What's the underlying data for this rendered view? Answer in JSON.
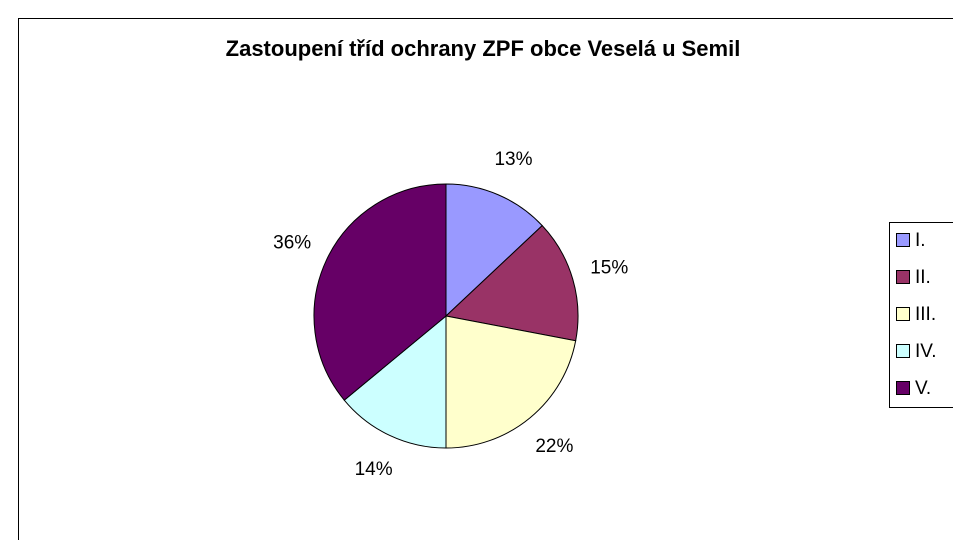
{
  "chart_data": {
    "type": "pie",
    "title": "Zastoupení tříd ochrany ZPF obce Veselá u Semil",
    "categories": [
      "I.",
      "II.",
      "III.",
      "IV.",
      "V."
    ],
    "values": [
      13,
      15,
      22,
      14,
      36
    ],
    "value_labels": [
      "13%",
      "15%",
      "22%",
      "14%",
      "36%"
    ],
    "colors": [
      "#9999ff",
      "#993366",
      "#ffffcc",
      "#ccffff",
      "#660066"
    ],
    "legend": "right"
  }
}
